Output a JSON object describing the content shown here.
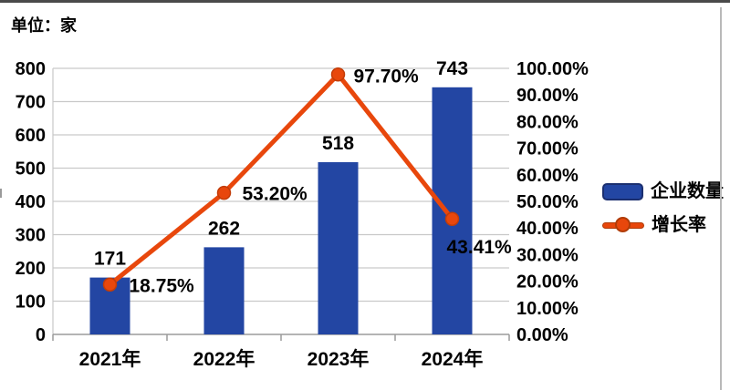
{
  "unit_label": "单位：家",
  "chart_data": {
    "type": "combo",
    "title": "",
    "categories": [
      "2021年",
      "2022年",
      "2023年",
      "2024年"
    ],
    "series": [
      {
        "name": "企业数量",
        "type": "bar",
        "axis": "left",
        "values": [
          171,
          262,
          518,
          743
        ],
        "color": "#2346a3"
      },
      {
        "name": "增长率",
        "type": "line",
        "axis": "right",
        "values": [
          18.75,
          53.2,
          97.7,
          43.41
        ],
        "value_labels": [
          "18.75%",
          "53.20%",
          "97.70%",
          "43.41%"
        ],
        "color": "#e8470c",
        "marker": "circle"
      }
    ],
    "left_axis": {
      "title": "单位：家",
      "min": 0,
      "max": 800,
      "step": 100
    },
    "right_axis": {
      "min": 0,
      "max": 100,
      "step": 10,
      "decimals": 2,
      "suffix": "%"
    },
    "grid": true,
    "legend_position": "right",
    "legend": [
      {
        "label": "企业数量",
        "swatch": "bar",
        "color": "#2346a3"
      },
      {
        "label": "增长率",
        "swatch": "line",
        "color": "#e8470c"
      }
    ]
  }
}
